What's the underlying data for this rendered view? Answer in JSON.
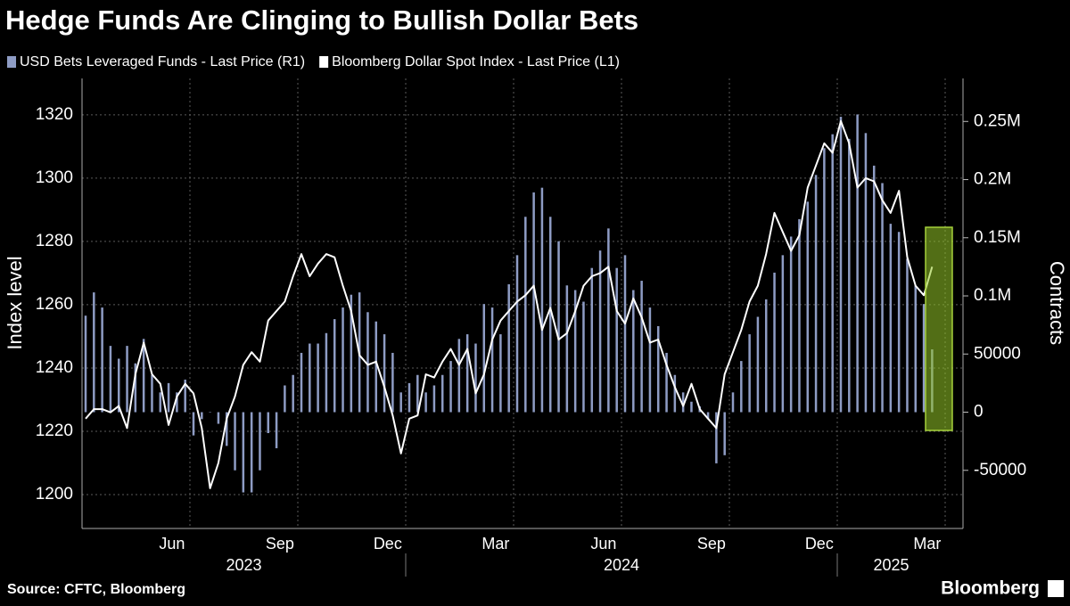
{
  "chart_data": {
    "type": "combo",
    "title": "Hedge Funds Are Clinging to Bullish Dollar Bets",
    "y_label": "Index level",
    "y2_label": "Contracts",
    "source": "Source: CFTC, Bloomberg",
    "brand": "Bloomberg",
    "categories": [
      null,
      null,
      null,
      null,
      null,
      null,
      null,
      null,
      null,
      null,
      null,
      null,
      null,
      null,
      null,
      null,
      null,
      null,
      null,
      null,
      null,
      null,
      null,
      null,
      null,
      null,
      null,
      null,
      null,
      null,
      null,
      null,
      null,
      null,
      null,
      null,
      null,
      null,
      null,
      null,
      null,
      null,
      null,
      null,
      null,
      null,
      null,
      null,
      null,
      null,
      null,
      null,
      null,
      null,
      null,
      null,
      null,
      null,
      null,
      null,
      null,
      null,
      null,
      null,
      null,
      null,
      null,
      null,
      null,
      null,
      null,
      null,
      null,
      null,
      null,
      null,
      null,
      null,
      null,
      null,
      null,
      null,
      null,
      null,
      null,
      null,
      null,
      null,
      null,
      null,
      null,
      null,
      null,
      null,
      null,
      null,
      null,
      null,
      null,
      null,
      null,
      null,
      null
    ],
    "series": [
      {
        "name": "USD Bets Leveraged Funds - Last Price (R1)",
        "type": "bar",
        "axis": "y2",
        "color": "#8e9cc4",
        "values": [
          83000,
          103000,
          90000,
          57000,
          46000,
          57000,
          42000,
          63000,
          32000,
          17000,
          25000,
          17000,
          28000,
          -20000,
          -6000,
          0,
          -10000,
          -29000,
          -50000,
          -69000,
          -69000,
          -50000,
          -18000,
          -31000,
          23000,
          32000,
          51000,
          59000,
          59000,
          68000,
          80000,
          90000,
          101000,
          103000,
          86000,
          78000,
          67000,
          51000,
          17000,
          25000,
          32000,
          17000,
          23000,
          32000,
          44000,
          63000,
          67000,
          59000,
          93000,
          90000,
          67000,
          110000,
          135000,
          168000,
          189000,
          193000,
          168000,
          147000,
          109000,
          105000,
          95000,
          124000,
          139000,
          158000,
          124000,
          135000,
          105000,
          113000,
          90000,
          74000,
          51000,
          32000,
          17000,
          9000,
          5000,
          -6000,
          -44000,
          -37000,
          17000,
          44000,
          67000,
          82000,
          97000,
          120000,
          135000,
          151000,
          166000,
          181000,
          204000,
          227000,
          239000,
          254000,
          235000,
          256000,
          240000,
          212000,
          197000,
          162000,
          155000,
          132000,
          109000,
          93000,
          54000
        ]
      },
      {
        "name": "Bloomberg Dollar Spot Index - Last Price (L1)",
        "type": "line",
        "axis": "y",
        "color": "#ffffff",
        "values": [
          1224,
          1227,
          1227,
          1226,
          1228,
          1221,
          1238,
          1248,
          1238,
          1235,
          1222,
          1231,
          1235,
          1232,
          1221,
          1202,
          1210,
          1224,
          1231,
          1241,
          1245,
          1242,
          1255,
          1258,
          1261,
          1269,
          1276,
          1269,
          1273,
          1276,
          1275,
          1266,
          1258,
          1244,
          1241,
          1242,
          1234,
          1225,
          1213,
          1224,
          1225,
          1238,
          1237,
          1242,
          1246,
          1241,
          1246,
          1232,
          1238,
          1249,
          1255,
          1258,
          1261,
          1263,
          1266,
          1252,
          1259,
          1249,
          1251,
          1258,
          1266,
          1269,
          1270,
          1272,
          1258,
          1254,
          1262,
          1256,
          1248,
          1249,
          1241,
          1234,
          1228,
          1235,
          1227,
          1224,
          1221,
          1238,
          1245,
          1252,
          1261,
          1266,
          1276,
          1289,
          1283,
          1277,
          1282,
          1297,
          1304,
          1311,
          1308,
          1318,
          1311,
          1297,
          1300,
          1299,
          1293,
          1289,
          1296,
          1275,
          1266,
          1263,
          1272
        ]
      }
    ],
    "xlim": [
      "2023-04",
      "2025-04"
    ],
    "xticks": [
      {
        "value": "2023-06",
        "label": "Jun"
      },
      {
        "value": "2023-09",
        "label": "Sep"
      },
      {
        "value": "2023-12",
        "label": "Dec"
      },
      {
        "value": "2024-03",
        "label": "Mar"
      },
      {
        "value": "2024-06",
        "label": "Jun"
      },
      {
        "value": "2024-09",
        "label": "Sep"
      },
      {
        "value": "2024-12",
        "label": "Dec"
      },
      {
        "value": "2025-03",
        "label": "Mar"
      }
    ],
    "years": [
      2023,
      2024,
      2025
    ],
    "ylim": [
      1189.3,
      1331.5
    ],
    "yticks": [
      1200,
      1220,
      1240,
      1260,
      1280,
      1300,
      1320
    ],
    "y2lim": [
      -100000,
      287000
    ],
    "y2ticks": [
      -50000,
      0,
      50000,
      {
        "value": 100000,
        "label": "0.1M"
      },
      {
        "value": 150000,
        "label": "0.15M"
      },
      {
        "value": 200000,
        "label": "0.2M"
      },
      {
        "value": 250000,
        "label": "0.25M"
      }
    ],
    "grid": true
  }
}
